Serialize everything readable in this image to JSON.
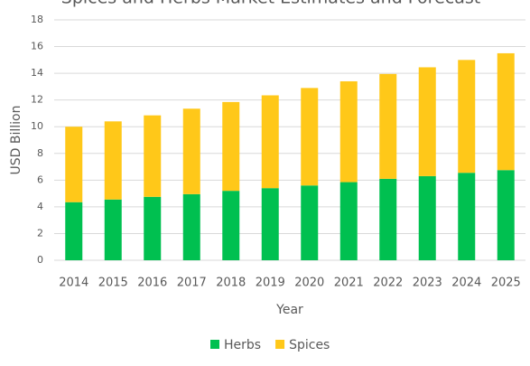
{
  "chart_data": {
    "type": "stacked_bar",
    "title": "Spices and Herbs Market Estimates and Forecast",
    "x_label": "Year",
    "y_label": "USD Billion",
    "categories": [
      "2014",
      "2015",
      "2016",
      "2017",
      "2018",
      "2019",
      "2020",
      "2021",
      "2022",
      "2023",
      "2024",
      "2025"
    ],
    "series": [
      {
        "name": "Herbs",
        "color": "#00c050",
        "values": [
          4.35,
          4.55,
          4.75,
          4.95,
          5.2,
          5.4,
          5.6,
          5.85,
          6.1,
          6.3,
          6.55,
          6.75
        ]
      },
      {
        "name": "Spices",
        "color": "#ffc819",
        "values": [
          5.65,
          5.85,
          6.1,
          6.4,
          6.65,
          6.95,
          7.3,
          7.55,
          7.85,
          8.15,
          8.45,
          8.75
        ]
      }
    ],
    "ylim": [
      0,
      18
    ],
    "yticks": [
      0,
      2,
      4,
      6,
      8,
      10,
      12,
      14,
      16,
      18
    ],
    "grid": true,
    "legend": "bottom"
  }
}
